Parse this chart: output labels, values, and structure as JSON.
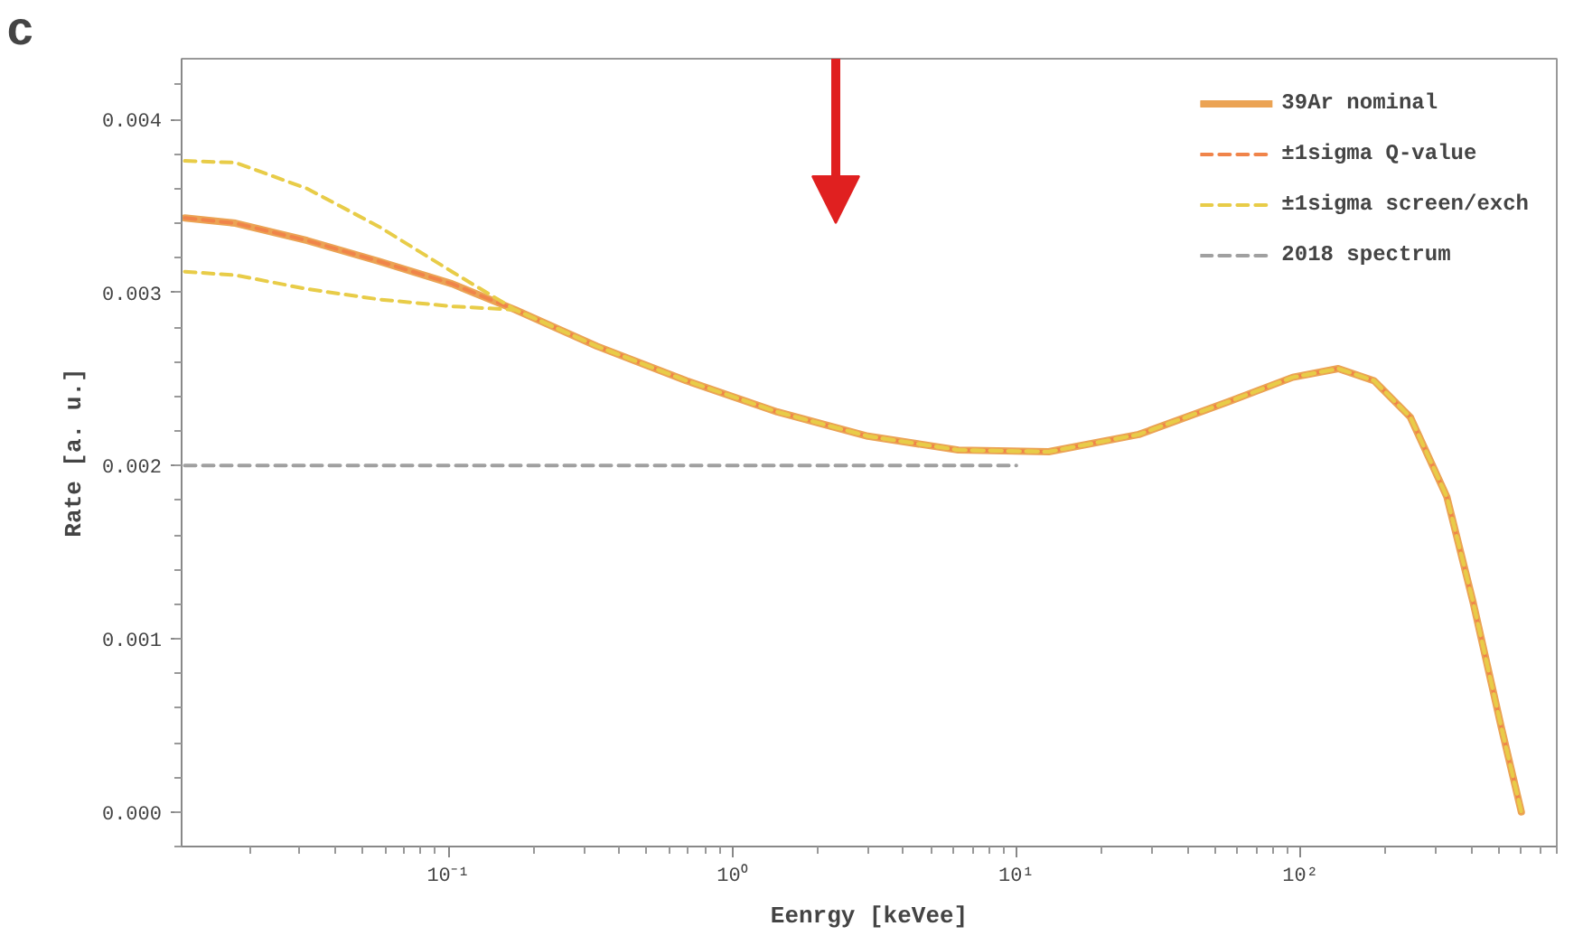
{
  "chart_data": {
    "type": "line",
    "xlabel": "Eenrgy [keVee]",
    "ylabel": "Rate [a. u.]",
    "log": "x",
    "annotations": [
      "c"
    ],
    "xlim": [
      0.0115,
      800
    ],
    "xticks": [
      {
        "value": 0.1,
        "label": "10⁻¹"
      },
      {
        "value": 1,
        "label": "10⁰"
      },
      {
        "value": 10,
        "label": "10¹"
      },
      {
        "value": 100,
        "label": "10²"
      }
    ],
    "ylim": [
      -0.0002,
      0.00435
    ],
    "yticks": [
      {
        "value": 0,
        "label": "0.000"
      },
      {
        "value": 0.001,
        "label": "0.001"
      },
      {
        "value": 0.002,
        "label": "0.002"
      },
      {
        "value": 0.003,
        "label": "0.003"
      },
      {
        "value": 0.004,
        "label": "0.004"
      }
    ],
    "grid": false,
    "legend": "top right",
    "x": [
      0.0118,
      0.0178,
      0.0318,
      0.057,
      0.103,
      0.172,
      0.333,
      0.69,
      1.44,
      3.0,
      6.25,
      13,
      27,
      56,
      94,
      136,
      182,
      244,
      328,
      406,
      510,
      600
    ],
    "series": [
      {
        "name": "39Ar nominal",
        "color": "#eba354",
        "line_style": "solid",
        "values": [
          0.00343,
          0.0034,
          0.0033,
          0.00318,
          0.00305,
          0.0029,
          0.00269,
          0.00249,
          0.00231,
          0.00217,
          0.00209,
          0.00208,
          0.00218,
          0.00237,
          0.00251,
          0.00256,
          0.00249,
          0.00228,
          0.00182,
          0.00121,
          0.00049,
          0.0
        ]
      },
      {
        "name": "±1sigma Q-value",
        "color": "#f0844a",
        "line_style": "dashed",
        "values": [
          0.00343,
          0.0034,
          0.0033,
          0.00318,
          0.00305,
          0.0029,
          0.00269,
          0.00249,
          0.00231,
          0.00217,
          0.00209,
          0.00208,
          0.00218,
          0.00237,
          0.00251,
          0.00256,
          0.00249,
          0.00228,
          0.00182,
          0.00121,
          0.00049,
          0.0
        ]
      },
      {
        "name": "±1sigma screen/exch",
        "color": "#e8cc48",
        "line_style": "dashed",
        "values": [
          0.00376,
          0.00375,
          0.0036,
          0.00338,
          0.00312,
          0.0029,
          0.00269,
          0.00249,
          0.00231,
          0.00217,
          0.00209,
          0.00208,
          0.00218,
          0.00237,
          0.00251,
          0.00256,
          0.00249,
          0.00228,
          0.00182,
          0.00121,
          0.00049,
          0.0
        ]
      },
      {
        "color": "#e8cc48",
        "line_style": "dashed",
        "values": [
          0.00312,
          0.0031,
          0.00302,
          0.00296,
          0.00292,
          0.0029,
          0.00269,
          0.00249,
          0.00231,
          0.00217,
          0.00209,
          0.00208,
          0.00218,
          0.00237,
          0.00251,
          0.00256,
          0.00249,
          0.00228,
          0.00182,
          0.00121,
          0.00049,
          0.0
        ]
      },
      {
        "name": "2018 spectrum",
        "color": "#a0a0a0",
        "line_style": "dashed",
        "x": [
          0.0118,
          10
        ],
        "values": [
          0.002,
          0.002
        ]
      }
    ]
  }
}
